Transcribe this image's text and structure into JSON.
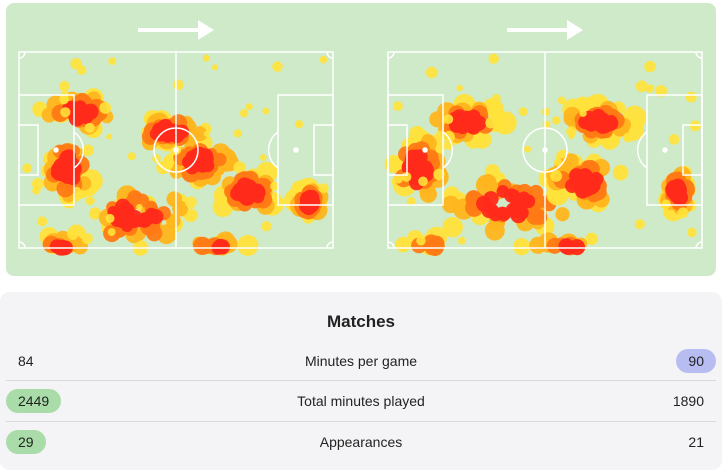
{
  "heatmap": {
    "background_color": "#cfeac8",
    "heat_colors": [
      "#ffe23a",
      "#ffb51e",
      "#ff7a14",
      "#ff2a1a"
    ],
    "arrow_icon": "arrow-right-icon"
  },
  "stats": {
    "title": "Matches",
    "rows": [
      {
        "label": "Minutes per game",
        "left": "84",
        "right": "90",
        "highlight": "right"
      },
      {
        "label": "Total minutes played",
        "left": "2449",
        "right": "1890",
        "highlight": "left"
      },
      {
        "label": "Appearances",
        "left": "29",
        "right": "21",
        "highlight": "left"
      }
    ],
    "colors": {
      "left_highlight": "#a9dca8",
      "right_highlight": "#b7bdf0"
    }
  }
}
